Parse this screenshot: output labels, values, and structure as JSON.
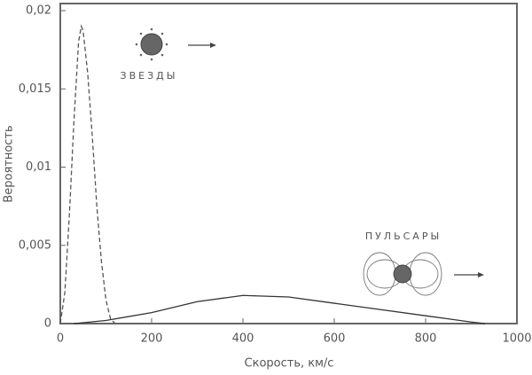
{
  "chart_data": {
    "type": "line",
    "xlabel": "Скорость, км/с",
    "ylabel": "Вероятность",
    "xlim": [
      0,
      1000
    ],
    "xticks": [
      0,
      200,
      400,
      600,
      800,
      1000
    ],
    "ylim": [
      0,
      0.02
    ],
    "yticks": [
      0,
      {
        "value": 0.005,
        "label": "0,005"
      },
      {
        "value": 0.01,
        "label": "0,01"
      },
      {
        "value": 0.015,
        "label": "0,015"
      },
      {
        "value": 0.02,
        "label": "0,02"
      }
    ],
    "series": [
      {
        "name": "ЗВЕЗДЫ",
        "color": "#555555",
        "dashed": true,
        "x": [
          0,
          10,
          20,
          30,
          40,
          46,
          50,
          60,
          70,
          80,
          90,
          100,
          110,
          120
        ],
        "values": [
          0,
          0.002,
          0.007,
          0.013,
          0.018,
          0.019,
          0.0187,
          0.016,
          0.012,
          0.0075,
          0.004,
          0.0015,
          0.0003,
          0
        ]
      },
      {
        "name": "ПУЛЬСАРЫ",
        "color": "#333333",
        "dashed": false,
        "x": [
          30,
          100,
          200,
          300,
          400,
          500,
          600,
          700,
          800,
          900,
          930
        ],
        "values": [
          0,
          0.0002,
          0.0007,
          0.0014,
          0.0018,
          0.0017,
          0.0013,
          0.0009,
          0.0005,
          0.0001,
          0
        ]
      }
    ]
  }
}
